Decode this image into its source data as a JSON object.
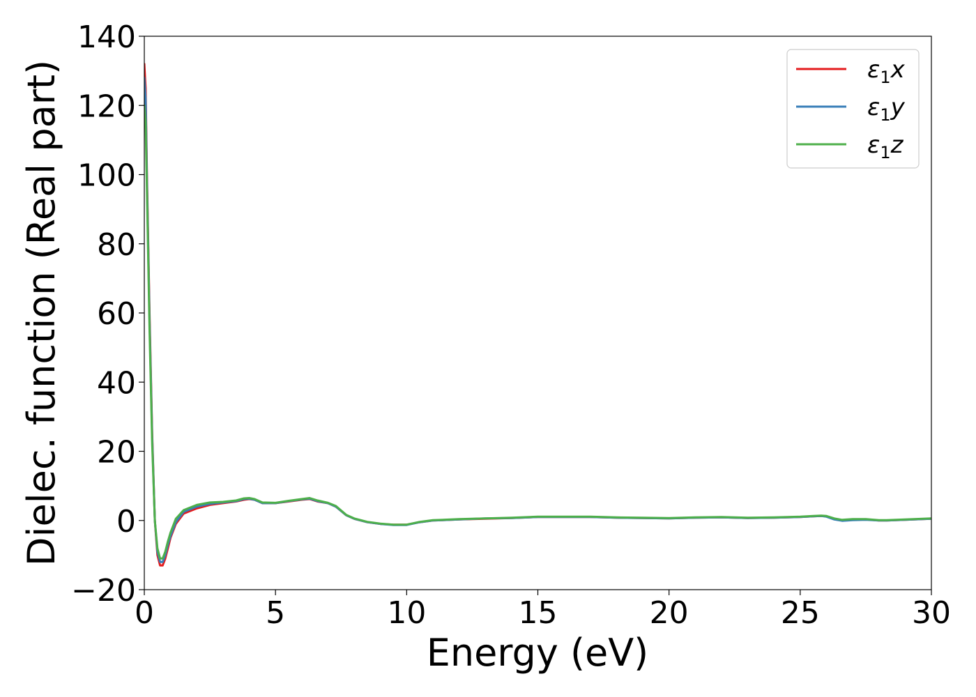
{
  "chart_data": {
    "type": "line",
    "title": "",
    "xlabel": "Energy (eV)",
    "ylabel": "Dielec. function (Real part)",
    "xlim": [
      0,
      30
    ],
    "ylim": [
      -20,
      140
    ],
    "xticks": [
      0,
      5,
      10,
      15,
      20,
      25,
      30
    ],
    "yticks": [
      -20,
      0,
      20,
      40,
      60,
      80,
      100,
      120,
      140
    ],
    "xtick_labels": [
      "0",
      "5",
      "10",
      "15",
      "20",
      "25",
      "30"
    ],
    "ytick_labels": [
      "−20",
      "0",
      "20",
      "40",
      "60",
      "80",
      "100",
      "120",
      "140"
    ],
    "grid": false,
    "legend_position": "top-right",
    "series": [
      {
        "name": "ε₁x",
        "legend_main": "ε",
        "legend_sub": "1",
        "legend_var": "x",
        "color": "#e41a1c",
        "x": [
          0.0,
          0.05,
          0.1,
          0.2,
          0.3,
          0.4,
          0.5,
          0.6,
          0.7,
          0.8,
          0.9,
          1.0,
          1.2,
          1.5,
          2.0,
          2.5,
          3.0,
          3.5,
          3.8,
          4.0,
          4.2,
          4.5,
          5.0,
          5.5,
          6.0,
          6.3,
          6.6,
          7.0,
          7.3,
          7.7,
          8.0,
          8.5,
          9.0,
          9.5,
          10.0,
          10.5,
          11.0,
          12.0,
          13.0,
          14.0,
          15.0,
          16.0,
          17.0,
          18.0,
          19.0,
          20.0,
          21.0,
          22.0,
          23.0,
          24.0,
          25.0,
          25.5,
          25.8,
          26.0,
          26.3,
          26.6,
          27.0,
          27.5,
          28.0,
          28.3,
          29.0,
          30.0
        ],
        "y": [
          132,
          125,
          100,
          60,
          25,
          0,
          -10,
          -13,
          -13,
          -11,
          -8,
          -5,
          -1,
          2,
          3.5,
          4.5,
          5,
          5.5,
          6,
          6.2,
          6,
          5,
          5,
          5.5,
          6,
          6.2,
          5.5,
          5,
          4,
          1.5,
          0.5,
          -0.5,
          -1,
          -1.2,
          -1.2,
          -0.5,
          0,
          0.3,
          0.5,
          0.7,
          1,
          1,
          1,
          0.8,
          0.7,
          0.6,
          0.8,
          0.9,
          0.7,
          0.8,
          1,
          1.2,
          1.3,
          1.2,
          0.5,
          0,
          0.2,
          0.3,
          0,
          0,
          0.2,
          0.5
        ]
      },
      {
        "name": "ε₁y",
        "legend_main": "ε",
        "legend_sub": "1",
        "legend_var": "y",
        "color": "#377eb8",
        "x": [
          0.0,
          0.05,
          0.1,
          0.2,
          0.3,
          0.4,
          0.5,
          0.6,
          0.7,
          0.8,
          0.9,
          1.0,
          1.2,
          1.5,
          2.0,
          2.5,
          3.0,
          3.5,
          3.8,
          4.0,
          4.2,
          4.5,
          5.0,
          5.5,
          6.0,
          6.3,
          6.6,
          7.0,
          7.3,
          7.7,
          8.0,
          8.5,
          9.0,
          9.5,
          10.0,
          10.5,
          11.0,
          12.0,
          13.0,
          14.0,
          15.0,
          16.0,
          17.0,
          18.0,
          19.0,
          20.0,
          21.0,
          22.0,
          23.0,
          24.0,
          25.0,
          25.5,
          25.8,
          26.0,
          26.3,
          26.6,
          27.0,
          27.5,
          28.0,
          28.3,
          29.0,
          30.0
        ],
        "y": [
          128,
          122,
          98,
          58,
          24,
          0,
          -9,
          -12,
          -12,
          -10,
          -7,
          -4.5,
          -0.5,
          2.5,
          4,
          4.8,
          5.2,
          5.6,
          6.2,
          6.3,
          6,
          5,
          5,
          5.6,
          6.1,
          6.3,
          5.6,
          5,
          4,
          1.5,
          0.5,
          -0.5,
          -1,
          -1.3,
          -1.3,
          -0.5,
          0,
          0.3,
          0.6,
          0.7,
          1,
          1,
          1,
          0.8,
          0.7,
          0.6,
          0.8,
          0.9,
          0.7,
          0.8,
          1,
          1.2,
          1.3,
          1.1,
          0.3,
          -0.1,
          0.1,
          0.2,
          0,
          0,
          0.2,
          0.5
        ]
      },
      {
        "name": "ε₁z",
        "legend_main": "ε",
        "legend_sub": "1",
        "legend_var": "z",
        "color": "#4daf4a",
        "x": [
          0.0,
          0.05,
          0.1,
          0.2,
          0.3,
          0.4,
          0.5,
          0.6,
          0.7,
          0.8,
          0.9,
          1.0,
          1.2,
          1.5,
          2.0,
          2.5,
          3.0,
          3.5,
          3.8,
          4.0,
          4.2,
          4.5,
          5.0,
          5.5,
          6.0,
          6.3,
          6.6,
          7.0,
          7.3,
          7.7,
          8.0,
          8.5,
          9.0,
          9.5,
          10.0,
          10.5,
          11.0,
          12.0,
          13.0,
          14.0,
          15.0,
          16.0,
          17.0,
          18.0,
          19.0,
          20.0,
          21.0,
          22.0,
          23.0,
          24.0,
          25.0,
          25.5,
          25.8,
          26.0,
          26.3,
          26.6,
          27.0,
          27.5,
          28.0,
          28.3,
          29.0,
          30.0
        ],
        "y": [
          120,
          115,
          95,
          55,
          22,
          0,
          -8,
          -11,
          -11,
          -9,
          -6,
          -3.5,
          0.5,
          3,
          4.5,
          5.2,
          5.4,
          5.8,
          6.4,
          6.5,
          6.2,
          5.2,
          5.1,
          5.7,
          6.2,
          6.5,
          5.8,
          5.1,
          4.2,
          1.6,
          0.6,
          -0.4,
          -0.9,
          -1.2,
          -1.2,
          -0.4,
          0.1,
          0.4,
          0.6,
          0.8,
          1.1,
          1.1,
          1.1,
          0.9,
          0.8,
          0.7,
          0.9,
          1,
          0.8,
          0.9,
          1.1,
          1.3,
          1.4,
          1.3,
          0.6,
          0.2,
          0.4,
          0.4,
          0.1,
          0.1,
          0.3,
          0.6
        ]
      }
    ]
  }
}
